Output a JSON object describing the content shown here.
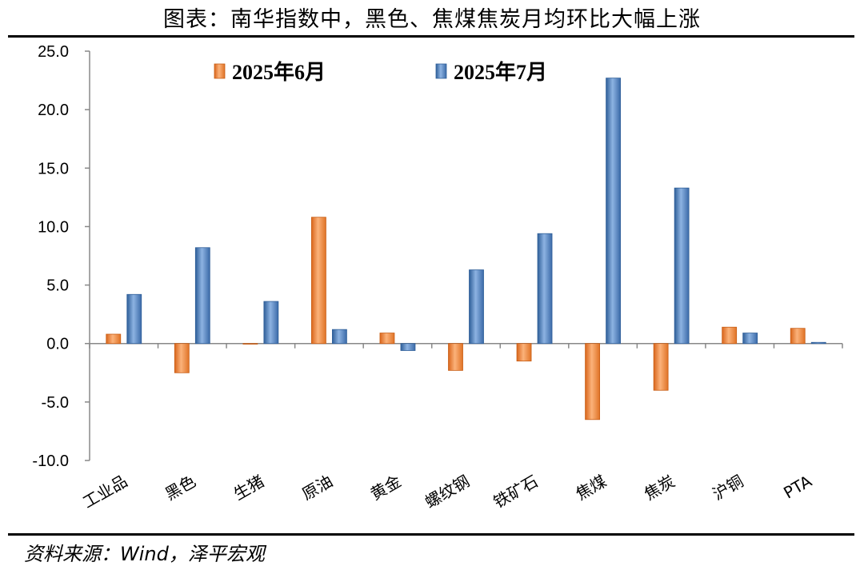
{
  "title": "图表：南华指数中，黑色、焦煤焦炭月均环比大幅上涨",
  "source": "资料来源：Wind，泽平宏观",
  "colors": {
    "series_june": "#f08a3c",
    "series_july": "#4f81bd"
  },
  "chart_data": {
    "type": "bar",
    "title": "图表：南华指数中，黑色、焦煤焦炭月均环比大幅上涨",
    "xlabel": "",
    "ylabel": "",
    "ylim": [
      -10.0,
      25.0
    ],
    "yticks": [
      "25.0",
      "20.0",
      "15.0",
      "10.0",
      "5.0",
      "0.0",
      "-5.0",
      "-10.0"
    ],
    "ytick_values": [
      25,
      20,
      15,
      10,
      5,
      0,
      -5,
      -10
    ],
    "categories": [
      "工业品",
      "黑色",
      "生猪",
      "原油",
      "黄金",
      "螺纹钢",
      "铁矿石",
      "焦煤",
      "焦炭",
      "沪铜",
      "PTA"
    ],
    "series": [
      {
        "name": "2025年6月",
        "color": "#f08a3c",
        "values": [
          0.8,
          -2.5,
          0.0,
          10.8,
          0.9,
          -2.3,
          -1.5,
          -6.5,
          -4.0,
          1.4,
          1.3
        ]
      },
      {
        "name": "2025年7月",
        "color": "#4f81bd",
        "values": [
          4.2,
          8.2,
          3.6,
          1.2,
          -0.6,
          6.3,
          9.4,
          22.7,
          13.3,
          0.9,
          0.1
        ]
      }
    ],
    "legend_position": "top",
    "grid": false
  }
}
